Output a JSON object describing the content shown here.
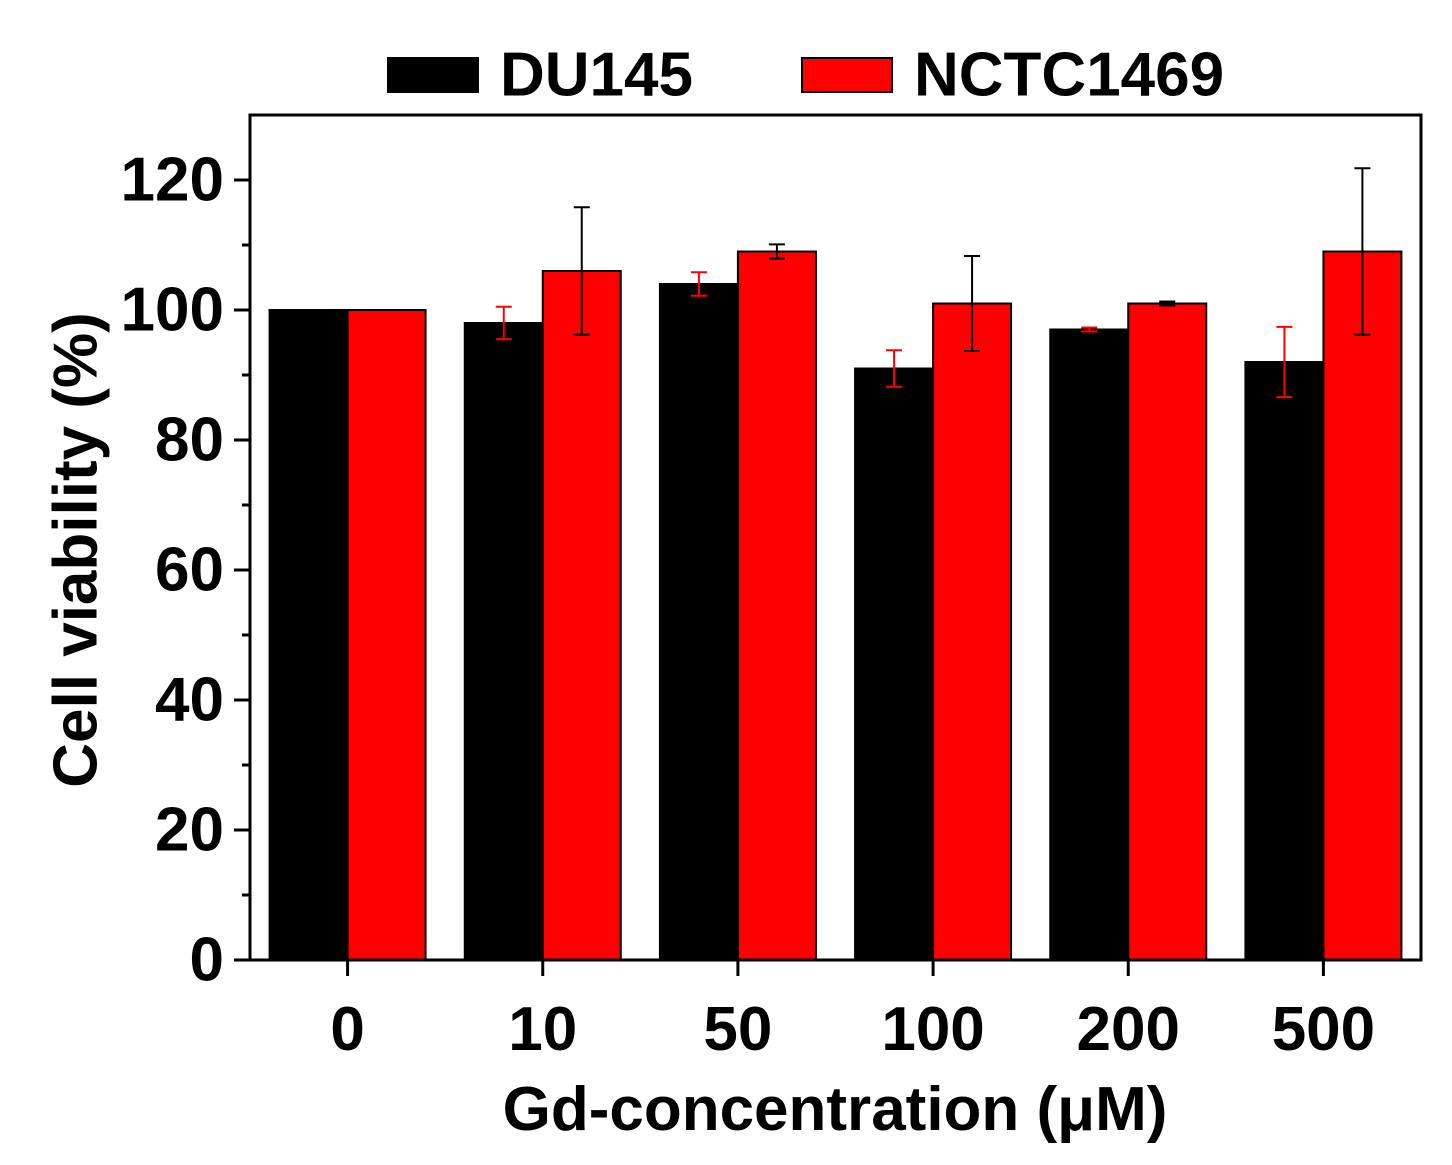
{
  "chart_data": {
    "type": "bar",
    "title": "",
    "xlabel": "Gd-concentration (μM)",
    "ylabel": "Cell viability (%)",
    "categories": [
      "0",
      "10",
      "50",
      "100",
      "200",
      "500"
    ],
    "ylim": [
      0,
      130
    ],
    "yticks": [
      0,
      20,
      40,
      60,
      80,
      100,
      120
    ],
    "grid": false,
    "legend_position": "top",
    "series": [
      {
        "name": "DU145",
        "color": "#000000",
        "error_color": "#ff0000",
        "values": [
          100,
          98,
          104,
          91,
          97,
          92
        ],
        "errors": [
          0,
          2.5,
          1.8,
          2.8,
          0.3,
          5.4
        ]
      },
      {
        "name": "NCTC1469",
        "color": "#ff0000",
        "error_color": "#000000",
        "values": [
          100,
          106,
          109,
          101,
          101,
          109
        ],
        "errors": [
          0,
          9.8,
          1.1,
          7.3,
          0.3,
          12.8
        ]
      }
    ]
  }
}
